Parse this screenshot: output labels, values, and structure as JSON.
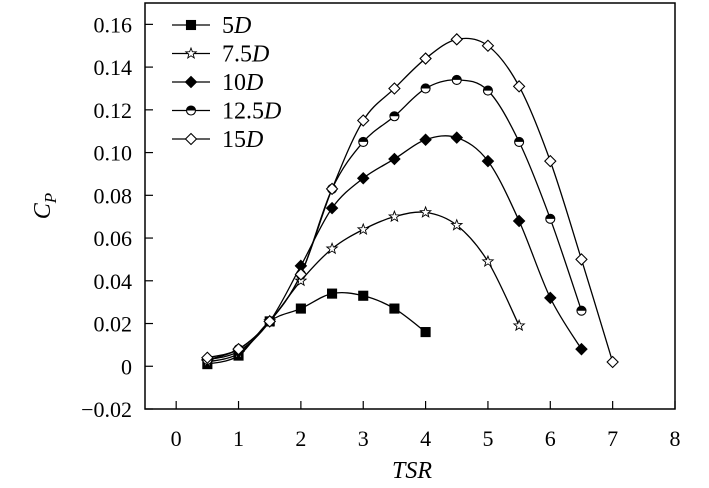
{
  "chart_data": {
    "type": "line",
    "title": "",
    "xlabel": "TSR",
    "ylabel": "C",
    "ylabel_subscript": "P",
    "xlim": [
      -0.5,
      8
    ],
    "ylim": [
      -0.02,
      0.17
    ],
    "xticks": [
      0,
      1,
      2,
      3,
      4,
      5,
      6,
      7,
      8
    ],
    "xtick_labels": [
      "0",
      "1",
      "2",
      "3",
      "4",
      "5",
      "6",
      "7",
      "8"
    ],
    "yticks": [
      -0.02,
      0,
      0.02,
      0.04,
      0.06,
      0.08,
      0.1,
      0.12,
      0.14,
      0.16
    ],
    "ytick_labels": [
      "−0.02",
      "0",
      "0.02",
      "0.04",
      "0.06",
      "0.08",
      "0.10",
      "0.12",
      "0.14",
      "0.16"
    ],
    "grid": false,
    "legend_position": "top-left",
    "series": [
      {
        "name": "5D",
        "label_value": "5",
        "label_unit": "D",
        "marker": "square-filled",
        "x": [
          0.5,
          1,
          1.5,
          2,
          2.5,
          3,
          3.5,
          4
        ],
        "y": [
          0.001,
          0.005,
          0.021,
          0.027,
          0.034,
          0.033,
          0.027,
          0.016
        ]
      },
      {
        "name": "7.5D",
        "label_value": "7.5",
        "label_unit": "D",
        "marker": "star-open",
        "x": [
          0.5,
          1,
          1.5,
          2,
          2.5,
          3,
          3.5,
          4,
          4.5,
          5,
          5.5
        ],
        "y": [
          0.002,
          0.006,
          0.021,
          0.04,
          0.055,
          0.064,
          0.07,
          0.072,
          0.066,
          0.049,
          0.019
        ]
      },
      {
        "name": "10D",
        "label_value": "10",
        "label_unit": "D",
        "marker": "diamond-filled",
        "x": [
          0.5,
          1,
          1.5,
          2,
          2.5,
          3,
          3.5,
          4,
          4.5,
          5,
          5.5,
          6,
          6.5
        ],
        "y": [
          0.003,
          0.007,
          0.021,
          0.047,
          0.074,
          0.088,
          0.097,
          0.106,
          0.107,
          0.096,
          0.068,
          0.032,
          0.008
        ]
      },
      {
        "name": "12.5D",
        "label_value": "12.5",
        "label_unit": "D",
        "marker": "circle-half",
        "x": [
          0.5,
          1,
          1.5,
          2,
          2.5,
          3,
          3.5,
          4,
          4.5,
          5,
          5.5,
          6,
          6.5
        ],
        "y": [
          0.003,
          0.008,
          0.021,
          0.043,
          0.083,
          0.105,
          0.117,
          0.13,
          0.134,
          0.129,
          0.105,
          0.069,
          0.026
        ]
      },
      {
        "name": "15D",
        "label_value": "15",
        "label_unit": "D",
        "marker": "diamond-open",
        "x": [
          0.5,
          1,
          1.5,
          2,
          2.5,
          3,
          3.5,
          4,
          4.5,
          5,
          5.5,
          6,
          6.5,
          7
        ],
        "y": [
          0.004,
          0.008,
          0.021,
          0.043,
          0.083,
          0.115,
          0.13,
          0.144,
          0.153,
          0.15,
          0.131,
          0.096,
          0.05,
          0.002
        ]
      }
    ]
  }
}
